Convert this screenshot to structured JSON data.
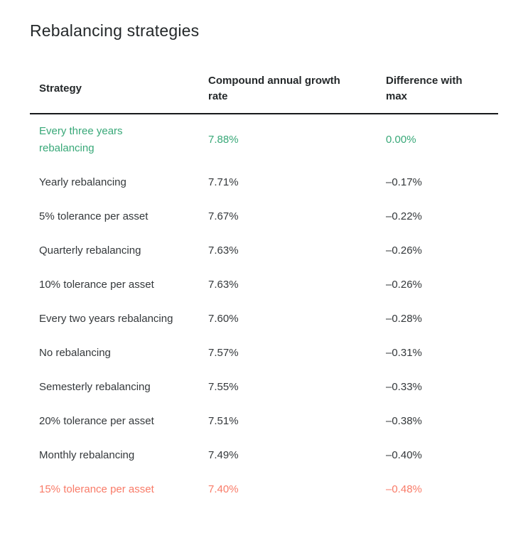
{
  "page": {
    "title": "Rebalancing strategies"
  },
  "colors": {
    "best": "#38a878",
    "worst": "#f97b68",
    "text": "#34383b",
    "heading": "#24282a",
    "rule": "#17191b"
  },
  "table": {
    "columns": [
      {
        "label": "Strategy"
      },
      {
        "label": "Compound annual growth rate"
      },
      {
        "label": "Difference with max"
      }
    ],
    "rows": [
      {
        "strategy": "Every three years rebalancing",
        "cagr": "7.88%",
        "diff": "0.00%",
        "highlight": "best"
      },
      {
        "strategy": "Yearly rebalancing",
        "cagr": "7.71%",
        "diff": "–0.17%",
        "highlight": "none"
      },
      {
        "strategy": "5% tolerance per asset",
        "cagr": "7.67%",
        "diff": "–0.22%",
        "highlight": "none"
      },
      {
        "strategy": "Quarterly rebalancing",
        "cagr": "7.63%",
        "diff": "–0.26%",
        "highlight": "none"
      },
      {
        "strategy": "10% tolerance per asset",
        "cagr": "7.63%",
        "diff": "–0.26%",
        "highlight": "none"
      },
      {
        "strategy": "Every two years rebalancing",
        "cagr": "7.60%",
        "diff": "–0.28%",
        "highlight": "none"
      },
      {
        "strategy": "No rebalancing",
        "cagr": "7.57%",
        "diff": "–0.31%",
        "highlight": "none"
      },
      {
        "strategy": "Semesterly rebalancing",
        "cagr": "7.55%",
        "diff": "–0.33%",
        "highlight": "none"
      },
      {
        "strategy": "20% tolerance per asset",
        "cagr": "7.51%",
        "diff": "–0.38%",
        "highlight": "none"
      },
      {
        "strategy": "Monthly rebalancing",
        "cagr": "7.49%",
        "diff": "–0.40%",
        "highlight": "none"
      },
      {
        "strategy": "15% tolerance per asset",
        "cagr": "7.40%",
        "diff": "–0.48%",
        "highlight": "worst"
      }
    ]
  },
  "chart_data": {
    "type": "table",
    "title": "Rebalancing strategies",
    "columns": [
      "Strategy",
      "Compound annual growth rate",
      "Difference with max"
    ],
    "rows": [
      {
        "strategy": "Every three years rebalancing",
        "cagr_pct": 7.88,
        "diff_pct": 0.0
      },
      {
        "strategy": "Yearly rebalancing",
        "cagr_pct": 7.71,
        "diff_pct": -0.17
      },
      {
        "strategy": "5% tolerance per asset",
        "cagr_pct": 7.67,
        "diff_pct": -0.22
      },
      {
        "strategy": "Quarterly rebalancing",
        "cagr_pct": 7.63,
        "diff_pct": -0.26
      },
      {
        "strategy": "10% tolerance per asset",
        "cagr_pct": 7.63,
        "diff_pct": -0.26
      },
      {
        "strategy": "Every two years rebalancing",
        "cagr_pct": 7.6,
        "diff_pct": -0.28
      },
      {
        "strategy": "No rebalancing",
        "cagr_pct": 7.57,
        "diff_pct": -0.31
      },
      {
        "strategy": "Semesterly rebalancing",
        "cagr_pct": 7.55,
        "diff_pct": -0.33
      },
      {
        "strategy": "20% tolerance per asset",
        "cagr_pct": 7.51,
        "diff_pct": -0.38
      },
      {
        "strategy": "Monthly rebalancing",
        "cagr_pct": 7.49,
        "diff_pct": -0.4
      },
      {
        "strategy": "15% tolerance per asset",
        "cagr_pct": 7.4,
        "diff_pct": -0.48
      }
    ],
    "best_row_index": 0,
    "worst_row_index": 10,
    "layout": {
      "sort": "cagr descending",
      "best_color": "#38a878",
      "worst_color": "#f97b68"
    }
  }
}
